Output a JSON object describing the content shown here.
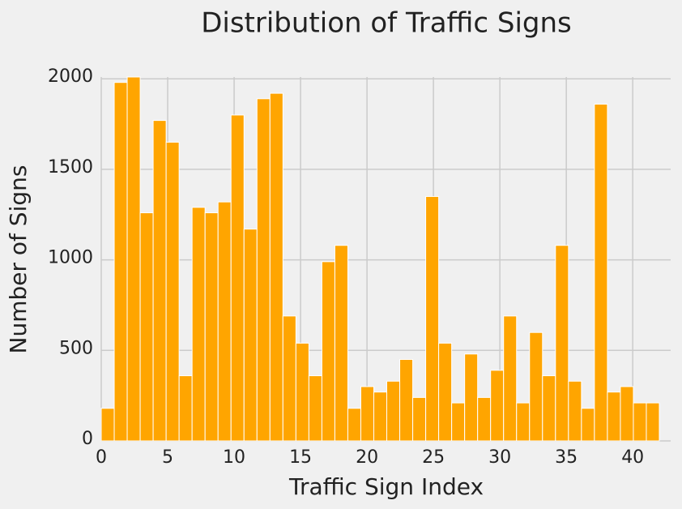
{
  "chart_data": {
    "type": "histogram",
    "title": "Distribution of Traffic Signs",
    "x_label": "Traffic Sign Index",
    "y_label": "Number of Signs",
    "bins": [
      0,
      0.977,
      1.953,
      2.93,
      3.907,
      4.884,
      5.86,
      6.837,
      7.814,
      8.791,
      9.767,
      10.744,
      11.721,
      12.698,
      13.674,
      14.651,
      15.628,
      16.605,
      17.581,
      18.558,
      19.535,
      20.512,
      21.488,
      22.465,
      23.442,
      24.419,
      25.395,
      26.372,
      27.349,
      28.326,
      29.302,
      30.279,
      31.256,
      32.233,
      33.209,
      34.186,
      35.163,
      36.14,
      37.116,
      38.093,
      39.07,
      40.047,
      41.023,
      42
    ],
    "counts": [
      180,
      1980,
      2010,
      1260,
      1770,
      1650,
      360,
      1290,
      1260,
      1320,
      1800,
      1170,
      1890,
      1920,
      690,
      540,
      360,
      990,
      1080,
      180,
      300,
      270,
      330,
      450,
      240,
      1350,
      540,
      210,
      480,
      240,
      390,
      690,
      210,
      599,
      360,
      1080,
      330,
      180,
      1860,
      270,
      300,
      210,
      210
    ],
    "color": "#ffa500",
    "xlim": [
      0,
      42
    ],
    "xticks": [
      0,
      5,
      10,
      15,
      20,
      25,
      30,
      35,
      40
    ],
    "ylim": [
      0,
      2010
    ],
    "yticks": [
      0,
      500,
      1000,
      1500,
      2000
    ],
    "grid": true
  }
}
